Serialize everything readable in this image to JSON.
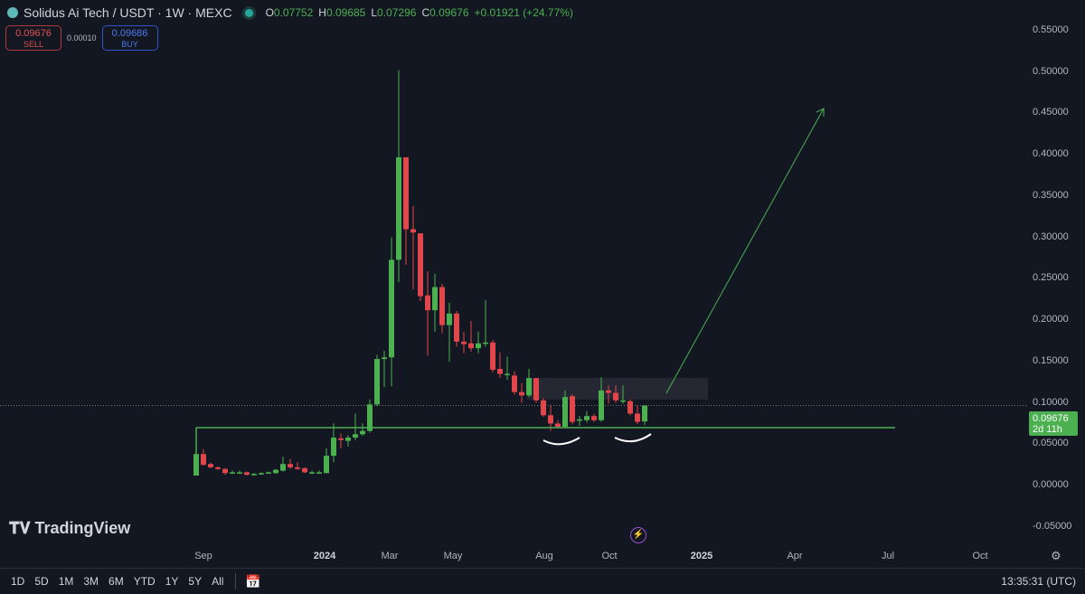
{
  "header": {
    "symbol": "Solidus Ai Tech / USDT · 1W · MEXC",
    "o_label": "O",
    "o": "0.07752",
    "h_label": "H",
    "h": "0.09685",
    "l_label": "L",
    "l": "0.07296",
    "c_label": "C",
    "c": "0.09676",
    "change": "+0.01921 (+24.77%)"
  },
  "trade": {
    "sell_price": "0.09676",
    "sell_label": "SELL",
    "spread": "0.00010",
    "buy_price": "0.09686",
    "buy_label": "BUY"
  },
  "price_label": {
    "price": "0.09676",
    "countdown": "2d 11h"
  },
  "brand": "TradingView",
  "colors": {
    "up": "#4caf50",
    "down": "#e0474c",
    "background": "#131722",
    "drawing": "#4caf50"
  },
  "bottom": {
    "ranges": [
      "1D",
      "5D",
      "1M",
      "3M",
      "6M",
      "YTD",
      "1Y",
      "5Y",
      "All"
    ],
    "clock": "13:35:31 (UTC)"
  },
  "chart_data": {
    "type": "candlestick",
    "ylim": [
      -0.05,
      0.55
    ],
    "y_ticks": [
      "0.55000",
      "0.50000",
      "0.45000",
      "0.40000",
      "0.35000",
      "0.30000",
      "0.25000",
      "0.20000",
      "0.15000",
      "0.10000",
      "0.05000",
      "0.00000",
      "-0.05000"
    ],
    "x_ticks": [
      {
        "label": "Sep",
        "bold": false
      },
      {
        "label": "2024",
        "bold": true
      },
      {
        "label": "Mar",
        "bold": false
      },
      {
        "label": "May",
        "bold": false
      },
      {
        "label": "Aug",
        "bold": false
      },
      {
        "label": "Oct",
        "bold": false
      },
      {
        "label": "2025",
        "bold": true
      },
      {
        "label": "Apr",
        "bold": false
      },
      {
        "label": "Jul",
        "bold": false
      },
      {
        "label": "Oct",
        "bold": false
      }
    ],
    "candles": [
      [
        0.012,
        0.038,
        0.012,
        0.038
      ],
      [
        0.038,
        0.044,
        0.024,
        0.025
      ],
      [
        0.026,
        0.028,
        0.021,
        0.022
      ],
      [
        0.022,
        0.023,
        0.019,
        0.02
      ],
      [
        0.02,
        0.021,
        0.013,
        0.015
      ],
      [
        0.016,
        0.018,
        0.014,
        0.016
      ],
      [
        0.016,
        0.018,
        0.014,
        0.016
      ],
      [
        0.016,
        0.017,
        0.012,
        0.013
      ],
      [
        0.014,
        0.015,
        0.012,
        0.014
      ],
      [
        0.014,
        0.016,
        0.013,
        0.015
      ],
      [
        0.015,
        0.017,
        0.014,
        0.016
      ],
      [
        0.015,
        0.02,
        0.014,
        0.019
      ],
      [
        0.018,
        0.035,
        0.017,
        0.026
      ],
      [
        0.026,
        0.032,
        0.02,
        0.022
      ],
      [
        0.022,
        0.028,
        0.019,
        0.02
      ],
      [
        0.021,
        0.022,
        0.015,
        0.016
      ],
      [
        0.016,
        0.018,
        0.014,
        0.016
      ],
      [
        0.016,
        0.018,
        0.014,
        0.016
      ],
      [
        0.015,
        0.045,
        0.015,
        0.036
      ],
      [
        0.036,
        0.075,
        0.028,
        0.058
      ],
      [
        0.057,
        0.063,
        0.045,
        0.055
      ],
      [
        0.054,
        0.061,
        0.047,
        0.058
      ],
      [
        0.058,
        0.087,
        0.055,
        0.062
      ],
      [
        0.062,
        0.075,
        0.06,
        0.066
      ],
      [
        0.066,
        0.104,
        0.064,
        0.098
      ],
      [
        0.098,
        0.158,
        0.096,
        0.153
      ],
      [
        0.153,
        0.163,
        0.119,
        0.155
      ],
      [
        0.155,
        0.3,
        0.12,
        0.273
      ],
      [
        0.273,
        0.502,
        0.246,
        0.397
      ],
      [
        0.397,
        0.397,
        0.267,
        0.31
      ],
      [
        0.31,
        0.338,
        0.237,
        0.306
      ],
      [
        0.305,
        0.305,
        0.223,
        0.229
      ],
      [
        0.23,
        0.259,
        0.157,
        0.212
      ],
      [
        0.212,
        0.256,
        0.186,
        0.24
      ],
      [
        0.24,
        0.244,
        0.184,
        0.194
      ],
      [
        0.194,
        0.221,
        0.15,
        0.208
      ],
      [
        0.208,
        0.211,
        0.168,
        0.174
      ],
      [
        0.174,
        0.186,
        0.16,
        0.171
      ],
      [
        0.172,
        0.199,
        0.162,
        0.166
      ],
      [
        0.166,
        0.186,
        0.16,
        0.172
      ],
      [
        0.173,
        0.224,
        0.168,
        0.173
      ],
      [
        0.173,
        0.176,
        0.137,
        0.14
      ],
      [
        0.141,
        0.161,
        0.13,
        0.135
      ],
      [
        0.135,
        0.156,
        0.128,
        0.135
      ],
      [
        0.133,
        0.138,
        0.11,
        0.113
      ],
      [
        0.113,
        0.124,
        0.1,
        0.109
      ],
      [
        0.109,
        0.141,
        0.107,
        0.13
      ],
      [
        0.13,
        0.13,
        0.1,
        0.103
      ],
      [
        0.103,
        0.106,
        0.083,
        0.085
      ],
      [
        0.085,
        0.097,
        0.066,
        0.075
      ],
      [
        0.075,
        0.079,
        0.069,
        0.071
      ],
      [
        0.071,
        0.115,
        0.071,
        0.107
      ],
      [
        0.108,
        0.11,
        0.074,
        0.077
      ],
      [
        0.08,
        0.084,
        0.072,
        0.08
      ],
      [
        0.079,
        0.09,
        0.076,
        0.084
      ],
      [
        0.084,
        0.087,
        0.077,
        0.079
      ],
      [
        0.079,
        0.131,
        0.077,
        0.115
      ],
      [
        0.115,
        0.121,
        0.099,
        0.112
      ],
      [
        0.112,
        0.121,
        0.1,
        0.103
      ],
      [
        0.103,
        0.121,
        0.099,
        0.103
      ],
      [
        0.102,
        0.104,
        0.085,
        0.087
      ],
      [
        0.087,
        0.097,
        0.074,
        0.077
      ],
      [
        0.07752,
        0.09685,
        0.07296,
        0.09676
      ]
    ],
    "support_level": 0.07,
    "last_price": 0.09676
  }
}
